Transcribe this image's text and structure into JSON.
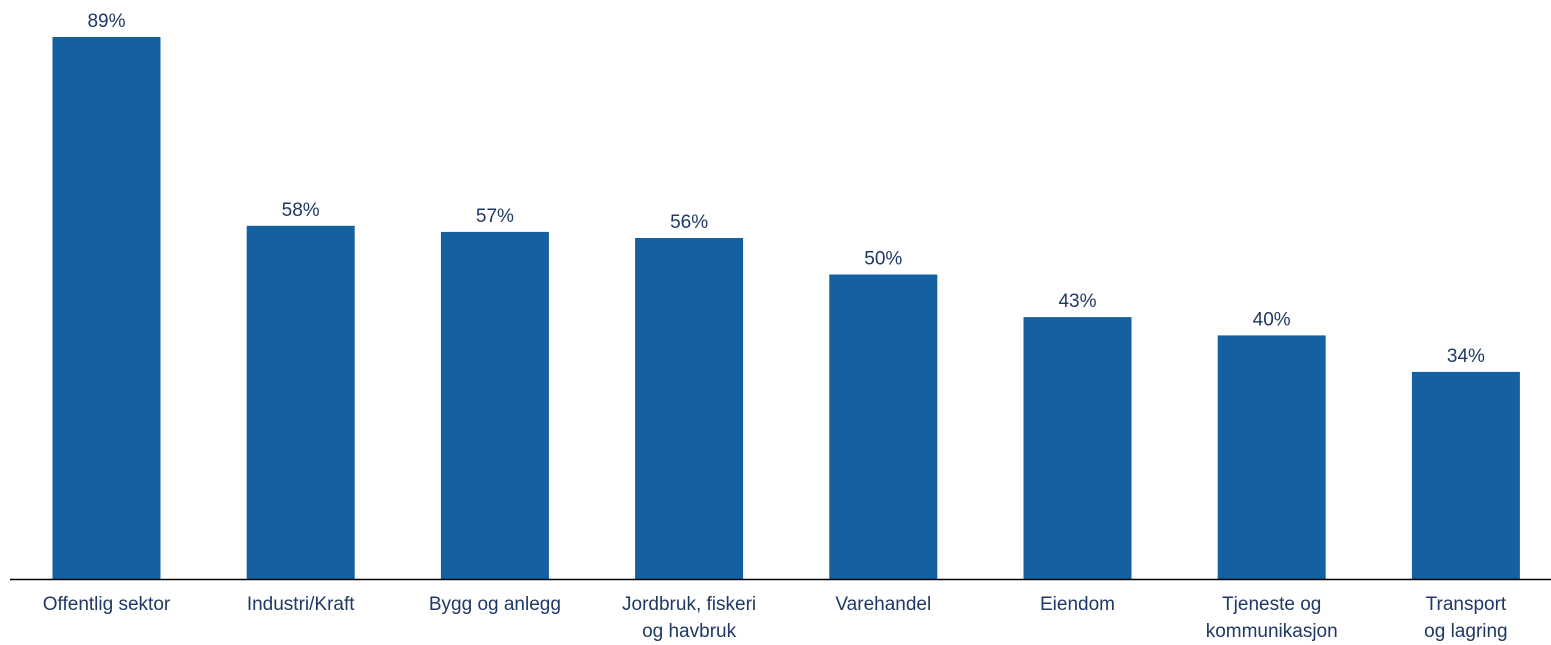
{
  "chart_data": {
    "type": "bar",
    "categories": [
      [
        "Offentlig sektor"
      ],
      [
        "Industri/Kraft"
      ],
      [
        "Bygg og anlegg"
      ],
      [
        "Jordbruk, fiskeri",
        "og havbruk"
      ],
      [
        "Varehandel"
      ],
      [
        "Eiendom"
      ],
      [
        "Tjeneste og",
        "kommunikasjon"
      ],
      [
        "Transport",
        "og lagring"
      ]
    ],
    "values": [
      89,
      58,
      57,
      56,
      50,
      43,
      40,
      34
    ],
    "data_labels": [
      "89%",
      "58%",
      "57%",
      "56%",
      "50%",
      "43%",
      "40%",
      "34%"
    ],
    "ylim": [
      0,
      89
    ],
    "grid": false,
    "legend": "none",
    "bar_color": "#1560a0",
    "axis_color": "#000000",
    "label_color": "#1f3864"
  }
}
